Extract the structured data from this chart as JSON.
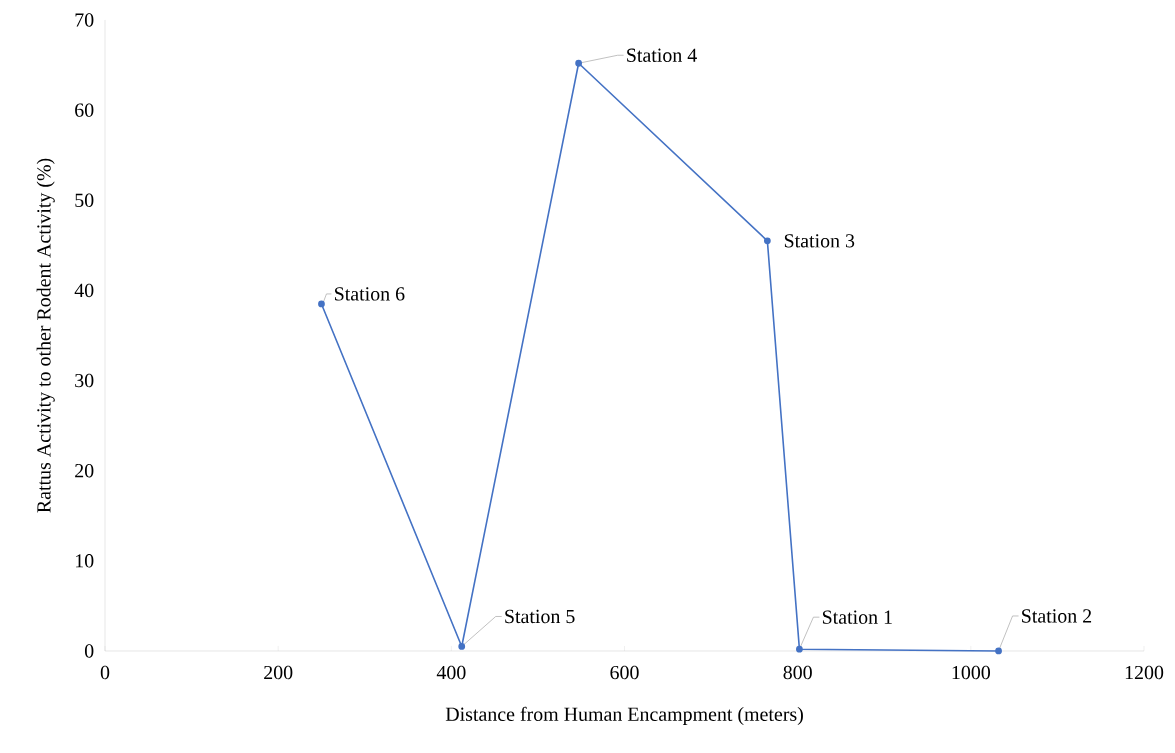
{
  "chart_data": {
    "type": "line",
    "xlabel": "Distance from Human Encampment (meters)",
    "ylabel": "Rattus Activity  to other  Rodent Activity (%)",
    "series": [
      {
        "color": "#4472c4",
        "x": [
          250,
          412,
          547,
          765,
          802,
          1032
        ],
        "values": [
          38.5,
          0.5,
          65.2,
          45.5,
          0.2,
          0
        ]
      }
    ],
    "xlim": [
      0,
      1200
    ],
    "xticks": [
      0,
      200,
      400,
      600,
      800,
      1000,
      1200
    ],
    "ylim": [
      0,
      70
    ],
    "yticks": [
      0,
      10,
      20,
      30,
      40,
      50,
      60,
      70
    ],
    "grid": false,
    "legend": false,
    "marker": "circle",
    "line_style": "solid",
    "annotations": [
      {
        "text": "Station 6",
        "x": 250,
        "y": 38.5
      },
      {
        "text": "Station 5",
        "x": 412,
        "y": 0.5
      },
      {
        "text": "Station 4",
        "x": 547,
        "y": 65.2
      },
      {
        "text": "Station 3",
        "x": 765,
        "y": 45.5
      },
      {
        "text": "Station 1",
        "x": 802,
        "y": 0.2
      },
      {
        "text": "Station 2",
        "x": 1032,
        "y": 0
      }
    ]
  }
}
